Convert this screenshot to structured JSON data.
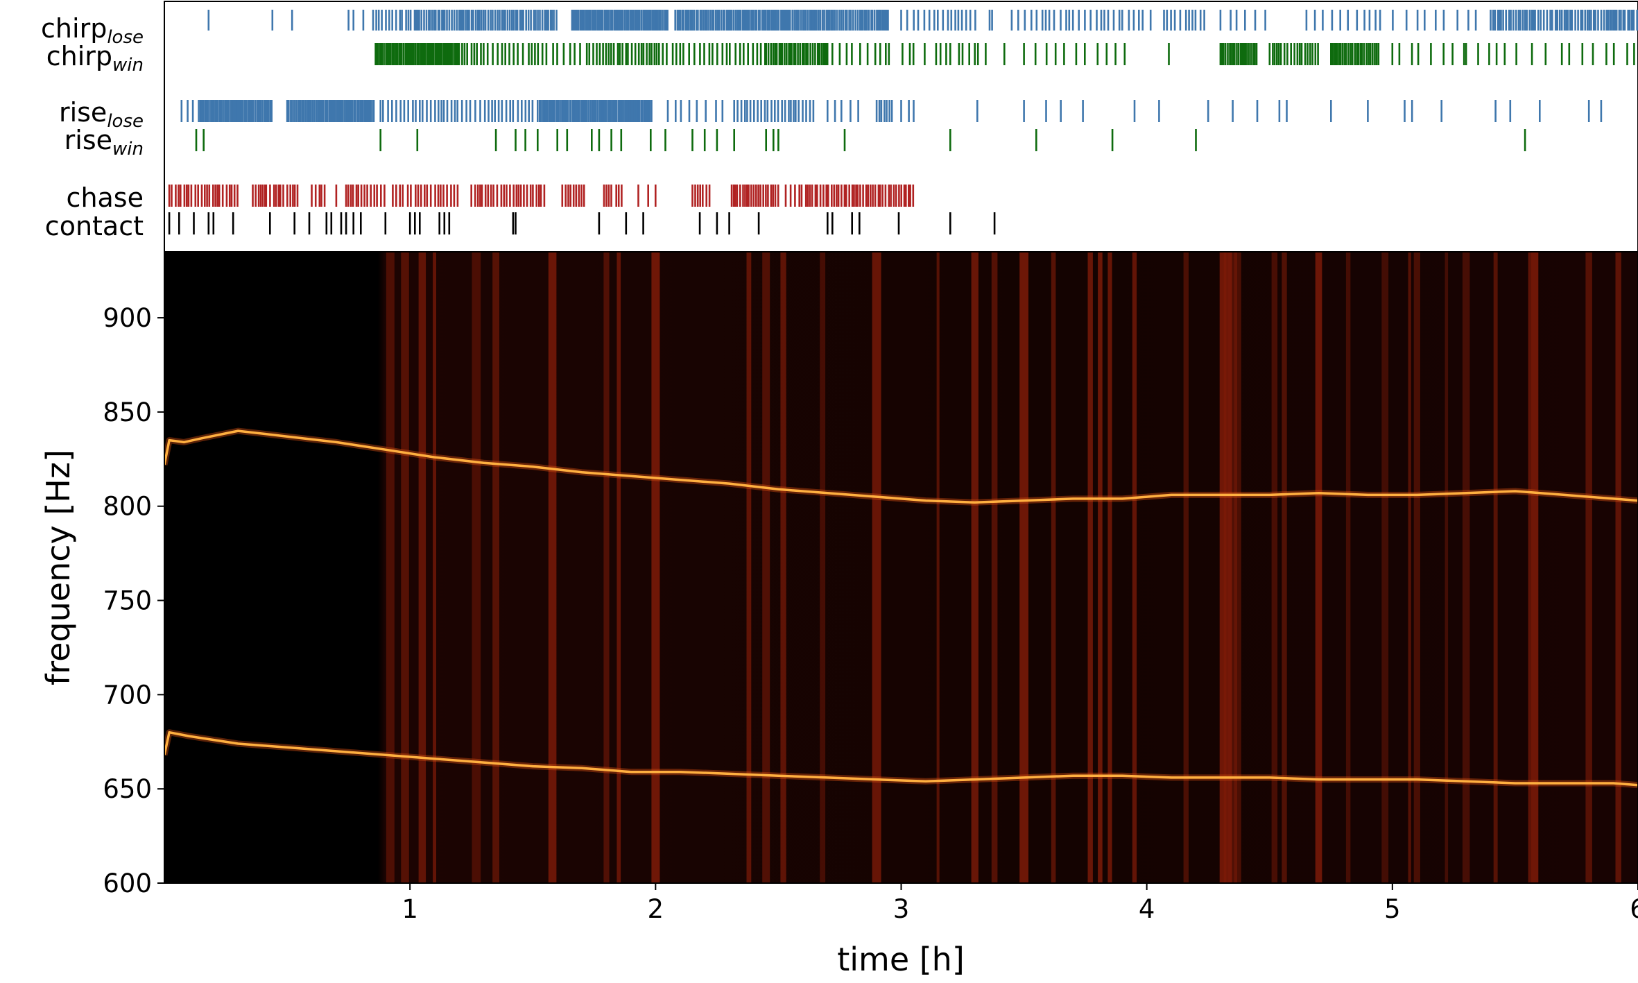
{
  "colors": {
    "lose": "#3f77ad",
    "win": "#0e6b0e",
    "chase": "#b02222",
    "contact": "#000000",
    "spectrogram_bg": "#000000",
    "trace": "#ffb040",
    "stripe": "#7a1a08"
  },
  "chart_data": [
    {
      "type": "event-raster",
      "xlim": [
        0,
        6
      ],
      "rows": [
        {
          "key": "chirp_lose",
          "label_main": "chirp",
          "label_sub": "lose",
          "color": "lose",
          "ranges": [
            [
              0.85,
              1.02,
              0.012
            ],
            [
              1.02,
              1.3,
              0.008
            ],
            [
              1.3,
              1.6,
              0.009
            ],
            [
              1.66,
              2.05,
              0.006
            ],
            [
              2.08,
              2.95,
              0.007
            ],
            [
              3.0,
              3.32,
              0.02
            ],
            [
              3.36,
              3.38,
              0.01
            ],
            [
              3.45,
              3.9,
              0.02
            ],
            [
              3.9,
              4.02,
              0.025
            ],
            [
              4.07,
              4.25,
              0.018
            ],
            [
              4.3,
              4.5,
              0.03
            ],
            [
              4.65,
              4.95,
              0.03
            ],
            [
              4.95,
              5.35,
              0.04
            ],
            [
              5.4,
              6.0,
              0.01
            ]
          ],
          "times": [
            0.18,
            0.44,
            0.52,
            0.75,
            0.77,
            0.81
          ]
        },
        {
          "key": "chirp_win",
          "label_main": "chirp",
          "label_sub": "win",
          "color": "win",
          "ranges": [
            [
              0.86,
              1.2,
              0.006
            ],
            [
              1.2,
              1.45,
              0.015
            ],
            [
              1.46,
              1.7,
              0.02
            ],
            [
              1.72,
              2.05,
              0.012
            ],
            [
              2.07,
              2.45,
              0.02
            ],
            [
              2.45,
              2.7,
              0.008
            ],
            [
              2.72,
              2.95,
              0.025
            ],
            [
              2.95,
              3.35,
              0.05
            ],
            [
              3.5,
              3.75,
              0.05
            ],
            [
              3.8,
              3.95,
              0.04
            ],
            [
              4.3,
              4.45,
              0.007
            ],
            [
              4.5,
              4.7,
              0.012
            ],
            [
              4.75,
              4.95,
              0.008
            ],
            [
              5.0,
              5.3,
              0.04
            ],
            [
              5.3,
              5.7,
              0.05
            ],
            [
              5.72,
              6.0,
              0.04
            ]
          ],
          "times": [
            3.05,
            3.16,
            3.2,
            3.25,
            3.3,
            3.42,
            4.09
          ]
        },
        {
          "key": "rise_lose",
          "label_main": "rise",
          "label_sub": "lose",
          "color": "lose",
          "ranges": [
            [
              0.07,
              0.12,
              0.02
            ],
            [
              0.14,
              0.44,
              0.006
            ],
            [
              0.5,
              0.86,
              0.006
            ],
            [
              0.88,
              1.5,
              0.015
            ],
            [
              1.52,
              1.99,
              0.006
            ],
            [
              2.05,
              2.3,
              0.03
            ],
            [
              2.32,
              2.65,
              0.012
            ],
            [
              2.7,
              2.85,
              0.03
            ],
            [
              2.9,
              2.97,
              0.01
            ],
            [
              3.0,
              3.06,
              0.03
            ]
          ],
          "times": [
            3.31,
            3.5,
            3.59,
            3.65,
            3.74,
            3.95,
            4.05,
            4.25,
            4.35,
            4.45,
            4.54,
            4.57,
            4.75,
            4.9,
            5.05,
            5.08,
            5.2,
            5.42,
            5.48,
            5.6,
            5.8,
            5.85
          ]
        },
        {
          "key": "rise_win",
          "label_main": "rise",
          "label_sub": "win",
          "color": "win",
          "times": [
            0.13,
            0.16,
            0.88,
            1.03,
            1.35,
            1.43,
            1.47,
            1.52,
            1.6,
            1.64,
            1.74,
            1.77,
            1.82,
            1.86,
            1.98,
            2.04,
            2.15,
            2.2,
            2.25,
            2.32,
            2.45,
            2.48,
            2.5,
            2.77,
            3.2,
            3.55,
            3.86,
            4.2,
            5.54
          ]
        },
        {
          "key": "chase",
          "label_main": "chase",
          "label_sub": "",
          "color": "chase",
          "ranges": [
            [
              0.02,
              0.3,
              0.012
            ],
            [
              0.36,
              0.55,
              0.012
            ],
            [
              0.6,
              0.66,
              0.012
            ],
            [
              0.74,
              0.9,
              0.012
            ],
            [
              0.93,
              1.2,
              0.015
            ],
            [
              1.25,
              1.55,
              0.012
            ],
            [
              1.62,
              1.72,
              0.012
            ],
            [
              1.79,
              1.82,
              0.01
            ],
            [
              1.85,
              1.87,
              0.01
            ],
            [
              2.15,
              2.22,
              0.015
            ],
            [
              2.31,
              2.5,
              0.01
            ],
            [
              2.55,
              2.62,
              0.015
            ],
            [
              2.62,
              3.05,
              0.01
            ]
          ],
          "times": [
            0.41,
            0.7,
            1.84,
            1.93,
            1.97,
            2.0,
            2.53
          ]
        },
        {
          "key": "contact",
          "label_main": "contact",
          "label_sub": "",
          "color": "contact",
          "times": [
            0.02,
            0.06,
            0.12,
            0.18,
            0.2,
            0.28,
            0.43,
            0.53,
            0.59,
            0.66,
            0.68,
            0.72,
            0.74,
            0.77,
            0.8,
            0.9,
            1.0,
            1.02,
            1.04,
            1.12,
            1.14,
            1.16,
            1.42,
            1.43,
            1.77,
            1.88,
            1.95,
            2.18,
            2.25,
            2.3,
            2.42,
            2.7,
            2.72,
            2.8,
            2.83,
            2.99,
            3.2,
            3.38
          ]
        }
      ]
    },
    {
      "type": "heatmap",
      "title": "",
      "xlabel": "time [h]",
      "ylabel": "frequency [Hz]",
      "xlim": [
        0,
        6
      ],
      "ylim": [
        600,
        935
      ],
      "xticks": [
        1,
        2,
        3,
        4,
        5,
        6
      ],
      "yticks": [
        600,
        650,
        700,
        750,
        800,
        850,
        900
      ],
      "bright_band_times": [
        0.92,
        0.98,
        1.05,
        1.1,
        1.27,
        1.35,
        1.58,
        1.8,
        1.85,
        2.0,
        2.38,
        2.45,
        2.52,
        2.68,
        2.9,
        3.15,
        3.3,
        3.38,
        3.5,
        3.62,
        3.77,
        3.81,
        3.85,
        3.95,
        4.16,
        4.31,
        4.33,
        4.35,
        4.37,
        4.52,
        4.56,
        4.7,
        4.82,
        4.97,
        5.07,
        5.1,
        5.22,
        5.3,
        5.42,
        5.56,
        5.58,
        5.8,
        5.92
      ],
      "series": [
        {
          "points": [
            [
              0.0,
              822
            ],
            [
              0.02,
              835
            ],
            [
              0.08,
              834
            ],
            [
              0.15,
              836
            ],
            [
              0.3,
              840
            ],
            [
              0.5,
              837
            ],
            [
              0.7,
              834
            ],
            [
              0.9,
              830
            ],
            [
              1.1,
              826
            ],
            [
              1.3,
              823
            ],
            [
              1.5,
              821
            ],
            [
              1.7,
              818
            ],
            [
              1.9,
              816
            ],
            [
              2.1,
              814
            ],
            [
              2.3,
              812
            ],
            [
              2.5,
              809
            ],
            [
              2.7,
              807
            ],
            [
              2.9,
              805
            ],
            [
              3.0,
              804
            ],
            [
              3.1,
              803
            ],
            [
              3.3,
              802
            ],
            [
              3.5,
              803
            ],
            [
              3.7,
              804
            ],
            [
              3.9,
              804
            ],
            [
              4.1,
              806
            ],
            [
              4.3,
              806
            ],
            [
              4.5,
              806
            ],
            [
              4.7,
              807
            ],
            [
              4.9,
              806
            ],
            [
              5.1,
              806
            ],
            [
              5.3,
              807
            ],
            [
              5.5,
              808
            ],
            [
              5.7,
              806
            ],
            [
              5.9,
              804
            ],
            [
              6.0,
              803
            ]
          ]
        },
        {
          "points": [
            [
              0.0,
              668
            ],
            [
              0.02,
              680
            ],
            [
              0.1,
              678
            ],
            [
              0.3,
              674
            ],
            [
              0.5,
              672
            ],
            [
              0.7,
              670
            ],
            [
              0.9,
              668
            ],
            [
              1.1,
              666
            ],
            [
              1.3,
              664
            ],
            [
              1.5,
              662
            ],
            [
              1.7,
              661
            ],
            [
              1.9,
              659
            ],
            [
              2.1,
              659
            ],
            [
              2.3,
              658
            ],
            [
              2.5,
              657
            ],
            [
              2.7,
              656
            ],
            [
              2.9,
              655
            ],
            [
              3.1,
              654
            ],
            [
              3.3,
              655
            ],
            [
              3.5,
              656
            ],
            [
              3.7,
              657
            ],
            [
              3.9,
              657
            ],
            [
              4.1,
              656
            ],
            [
              4.3,
              656
            ],
            [
              4.5,
              656
            ],
            [
              4.7,
              655
            ],
            [
              4.9,
              655
            ],
            [
              5.1,
              655
            ],
            [
              5.3,
              654
            ],
            [
              5.5,
              653
            ],
            [
              5.7,
              653
            ],
            [
              5.9,
              653
            ],
            [
              6.0,
              652
            ]
          ]
        }
      ]
    }
  ]
}
